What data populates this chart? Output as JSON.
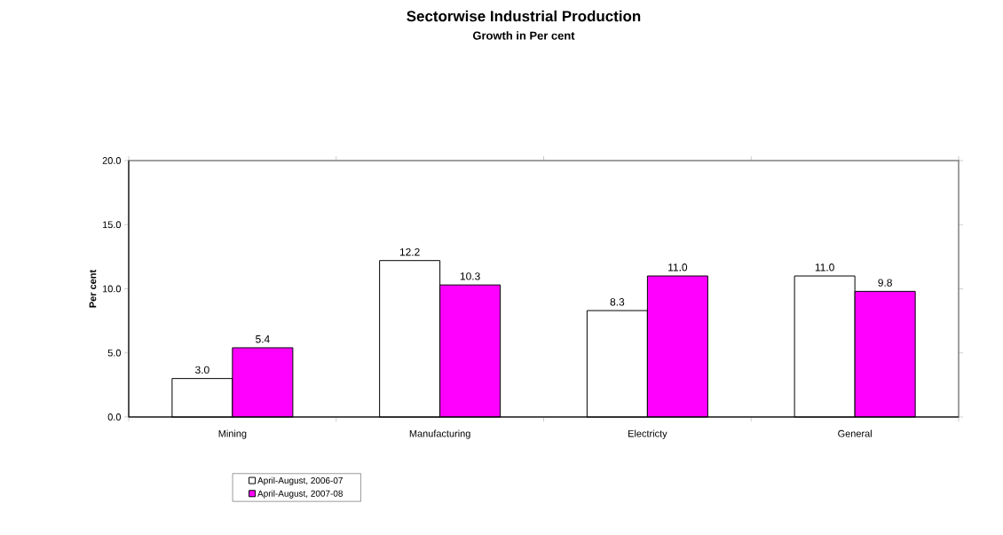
{
  "chart_data": {
    "type": "bar",
    "title": "Sectorwise Industrial Production",
    "subtitle": "Growth in Per cent",
    "ylabel": "Per cent",
    "categories": [
      "Mining",
      "Manufacturing",
      "Electricty",
      "General"
    ],
    "series": [
      {
        "name": "April-August, 2006-07",
        "color": "#ffffff",
        "values": [
          3.0,
          12.2,
          8.3,
          11.0
        ],
        "value_labels": [
          "3.0",
          "12.2",
          "8.3",
          "11.0"
        ]
      },
      {
        "name": "April-August, 2007-08",
        "color": "#ff00ff",
        "values": [
          5.4,
          10.3,
          11.0,
          9.8
        ],
        "value_labels": [
          "5.4",
          "10.3",
          "11.0",
          "9.8"
        ]
      }
    ],
    "ylim": [
      0,
      20
    ],
    "yticks": [
      {
        "value": 0,
        "label": "0.0"
      },
      {
        "value": 5,
        "label": "5.0"
      },
      {
        "value": 10,
        "label": "10.0"
      },
      {
        "value": 15,
        "label": "15.0"
      },
      {
        "value": 20,
        "label": "20.0"
      }
    ],
    "grid": false,
    "legend": "bottom"
  }
}
